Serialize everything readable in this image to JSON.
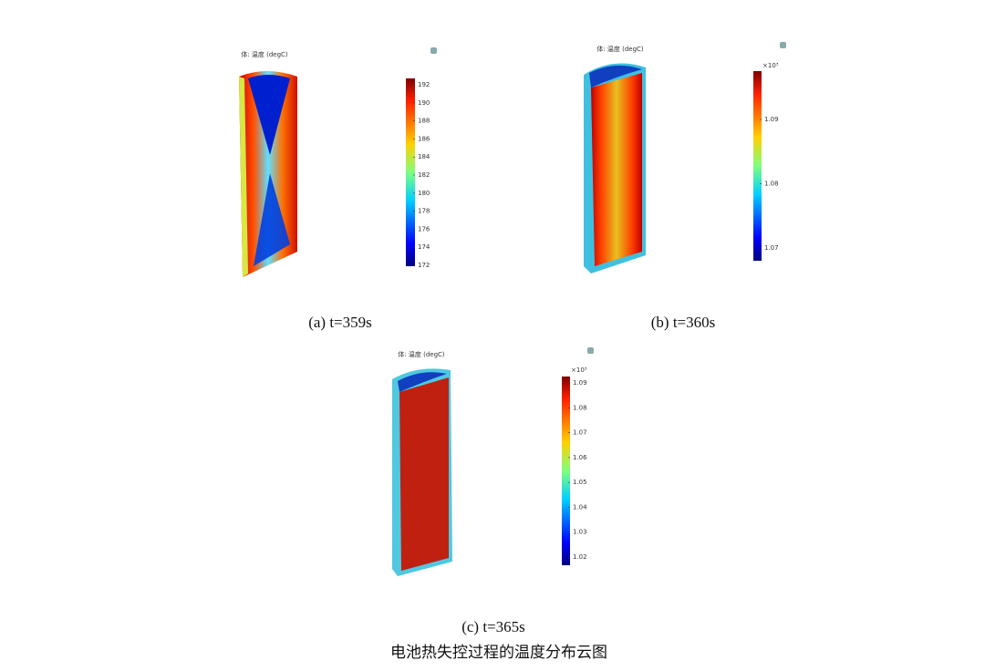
{
  "figure": {
    "panels": [
      {
        "title": "体: 温度 (degC)",
        "ticks": [
          "192",
          "190",
          "188",
          "186",
          "184",
          "182",
          "180",
          "178",
          "176",
          "174",
          "172"
        ],
        "caption": "(a) t=359s"
      },
      {
        "title": "体: 温度 (degC)",
        "multiplier": "×10³",
        "ticks": [
          "1.09",
          "1.08",
          "1.07"
        ],
        "caption": "(b) t=360s"
      },
      {
        "title": "体: 温度 (degC)",
        "multiplier": "×10³",
        "ticks": [
          "1.09",
          "1.08",
          "1.07",
          "1.06",
          "1.05",
          "1.04",
          "1.03",
          "1.02"
        ],
        "caption": "(c) t=365s"
      }
    ],
    "caption": "电池热失控过程的温度分布云图"
  }
}
